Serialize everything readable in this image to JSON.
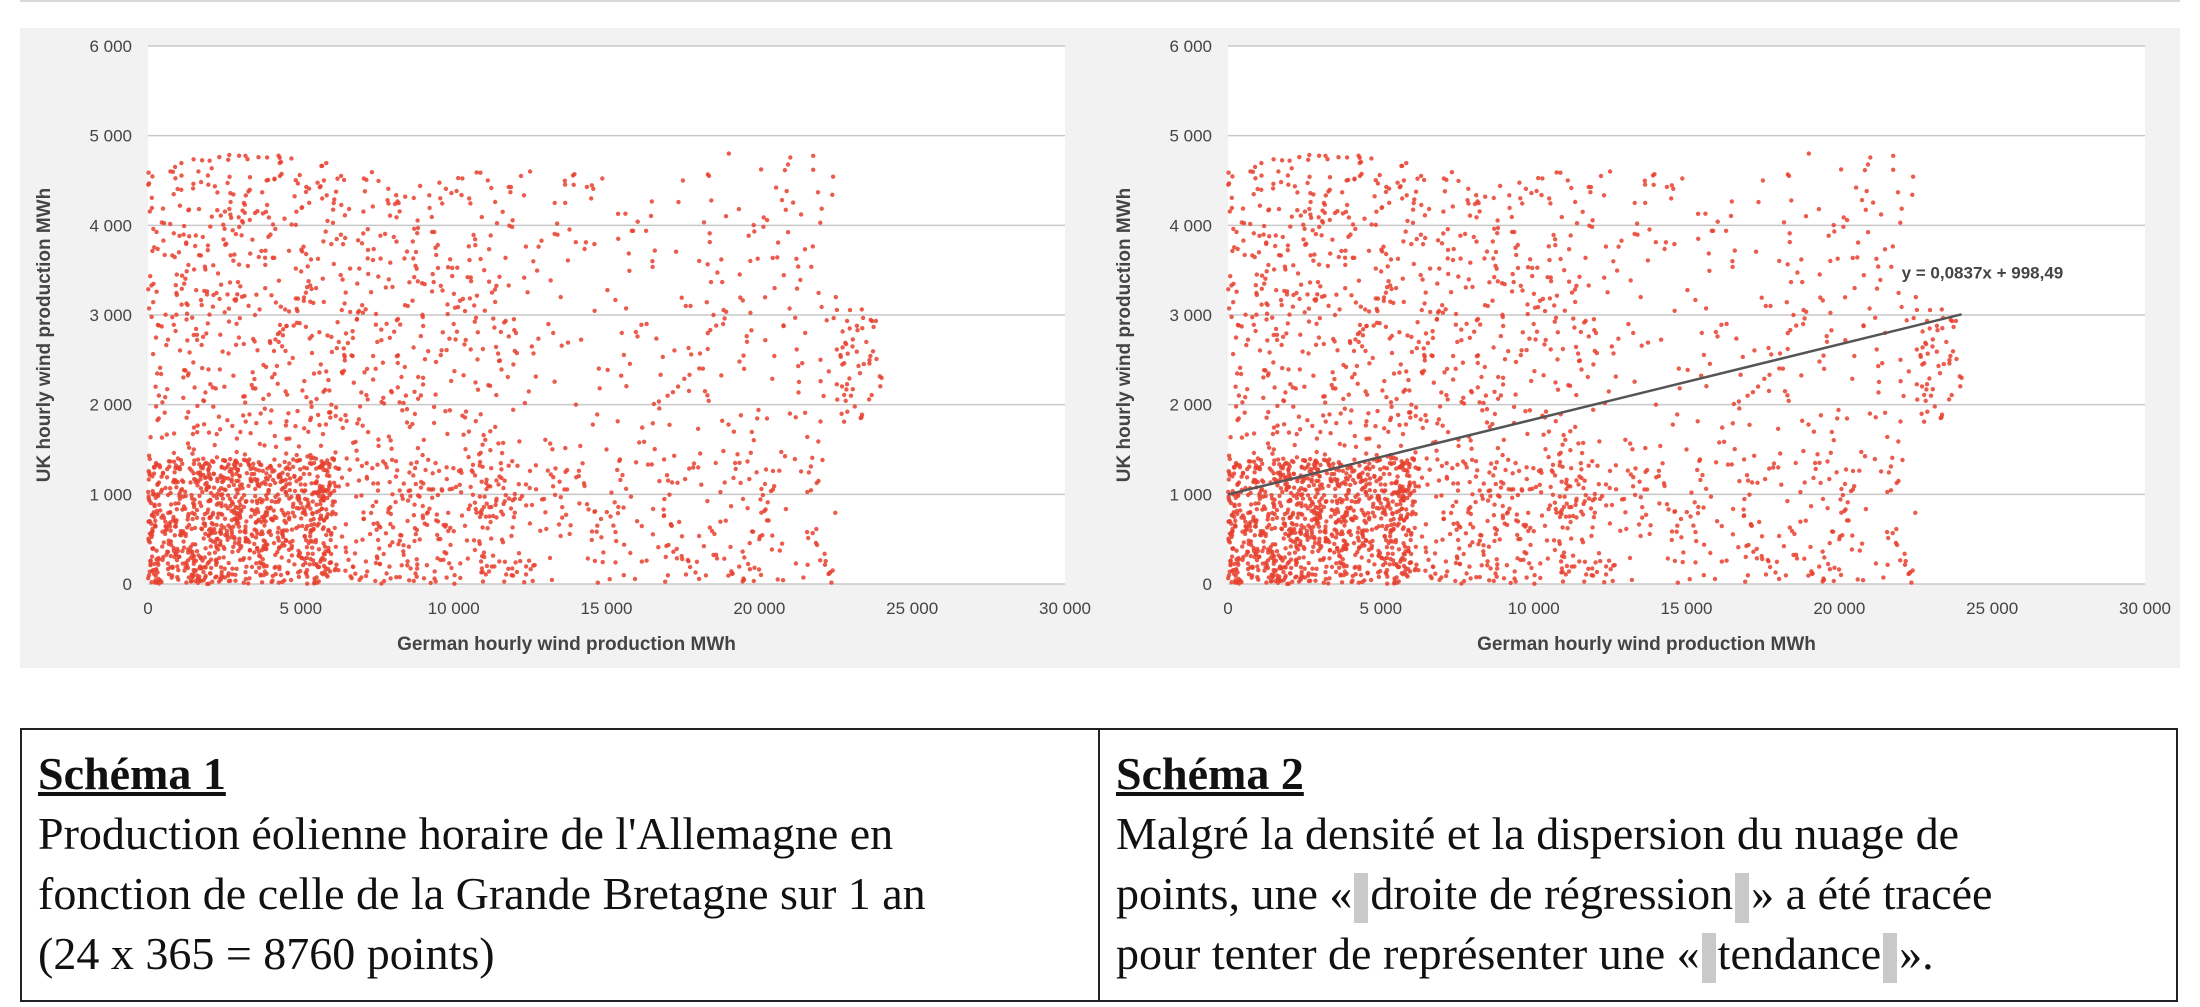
{
  "chart_data": [
    {
      "type": "scatter",
      "title": "",
      "xlabel": "German hourly wind production MWh",
      "ylabel": "UK hourly wind production MWh",
      "xlim": [
        0,
        30000
      ],
      "ylim": [
        0,
        6000
      ],
      "x_ticks": [
        "0",
        "5 000",
        "10 000",
        "15 000",
        "20 000",
        "25 000",
        "30 000"
      ],
      "y_ticks": [
        "0",
        "1 000",
        "2 000",
        "3 000",
        "4 000",
        "5 000",
        "6 000"
      ],
      "grid": "horizontal",
      "point_count": 8760,
      "point_color": "#e8402e",
      "series": [
        {
          "points": [
            [
              500,
              300
            ],
            [
              1000,
              900
            ],
            [
              1500,
              1500
            ],
            [
              2000,
              600
            ],
            [
              2500,
              2200
            ],
            [
              3000,
              1200
            ],
            [
              3500,
              3000
            ],
            [
              4000,
              1800
            ],
            [
              4500,
              2600
            ],
            [
              5000,
              900
            ],
            [
              5500,
              3300
            ],
            [
              6000,
              2000
            ],
            [
              6500,
              1400
            ],
            [
              7000,
              3800
            ],
            [
              7500,
              2700
            ],
            [
              8000,
              1000
            ],
            [
              8500,
              3100
            ],
            [
              9000,
              2300
            ],
            [
              9500,
              500
            ],
            [
              10000,
              2900
            ],
            [
              10500,
              1700
            ],
            [
              11000,
              3500
            ],
            [
              11500,
              1200
            ],
            [
              12000,
              2600
            ],
            [
              12500,
              4600
            ],
            [
              13000,
              800
            ],
            [
              13500,
              3200
            ],
            [
              14000,
              2000
            ],
            [
              14500,
              4300
            ],
            [
              15000,
              1500
            ],
            [
              15500,
              2800
            ],
            [
              16000,
              700
            ],
            [
              16500,
              3600
            ],
            [
              17000,
              2100
            ],
            [
              17500,
              4500
            ],
            [
              18000,
              1300
            ],
            [
              18500,
              3000
            ],
            [
              19000,
              4800
            ],
            [
              19500,
              2400
            ],
            [
              20000,
              500
            ],
            [
              20500,
              3300
            ],
            [
              21000,
              1900
            ],
            [
              21500,
              2800
            ],
            [
              22000,
              2500
            ],
            [
              22500,
              3200
            ],
            [
              23000,
              2100
            ],
            [
              23500,
              2700
            ],
            [
              24000,
              2300
            ]
          ],
          "extent_bins": [
            [
              0,
              3500,
              4800
            ],
            [
              2500,
              3600,
              4800
            ],
            [
              5000,
              3900,
              4700
            ],
            [
              7500,
              3700,
              4500
            ],
            [
              10000,
              4400,
              4600
            ],
            [
              12500,
              4700,
              4600
            ],
            [
              15000,
              4400,
              4400
            ],
            [
              17500,
              4700,
              4600
            ],
            [
              20000,
              4900,
              4800
            ],
            [
              22500,
              3100,
              3000
            ]
          ]
        }
      ]
    },
    {
      "type": "scatter",
      "title": "",
      "xlabel": "German hourly wind production MWh",
      "ylabel": "UK hourly wind production MWh",
      "xlim": [
        0,
        30000
      ],
      "ylim": [
        0,
        6000
      ],
      "x_ticks": [
        "0",
        "5 000",
        "10 000",
        "15 000",
        "20 000",
        "25 000",
        "30 000"
      ],
      "y_ticks": [
        "0",
        "1 000",
        "2 000",
        "3 000",
        "4 000",
        "5 000",
        "6 000"
      ],
      "grid": "horizontal",
      "point_count": 8760,
      "point_color": "#e8402e",
      "trendline": {
        "equation": "y = 0,0837x + 998,49",
        "slope": 0.0837,
        "intercept": 998.49,
        "x_range": [
          0,
          24000
        ],
        "color": "#555555"
      }
    }
  ],
  "captions": [
    {
      "title": "Schéma 1",
      "lines": [
        "Production éolienne horaire de l'Allemagne en",
        "fonction de celle de la Grande Bretagne sur 1 an",
        "(24 x 365 = 8760 points)"
      ]
    },
    {
      "title": "Schéma 2",
      "line1": "Malgré la densité et la dispersion du nuage de",
      "line2_a": "points, une «",
      "line2_b": "droite de régression",
      "line2_c": "» a été tracée",
      "line3_a": "pour tenter de représenter une «",
      "line3_b": "tendance",
      "line3_c": "»."
    }
  ]
}
